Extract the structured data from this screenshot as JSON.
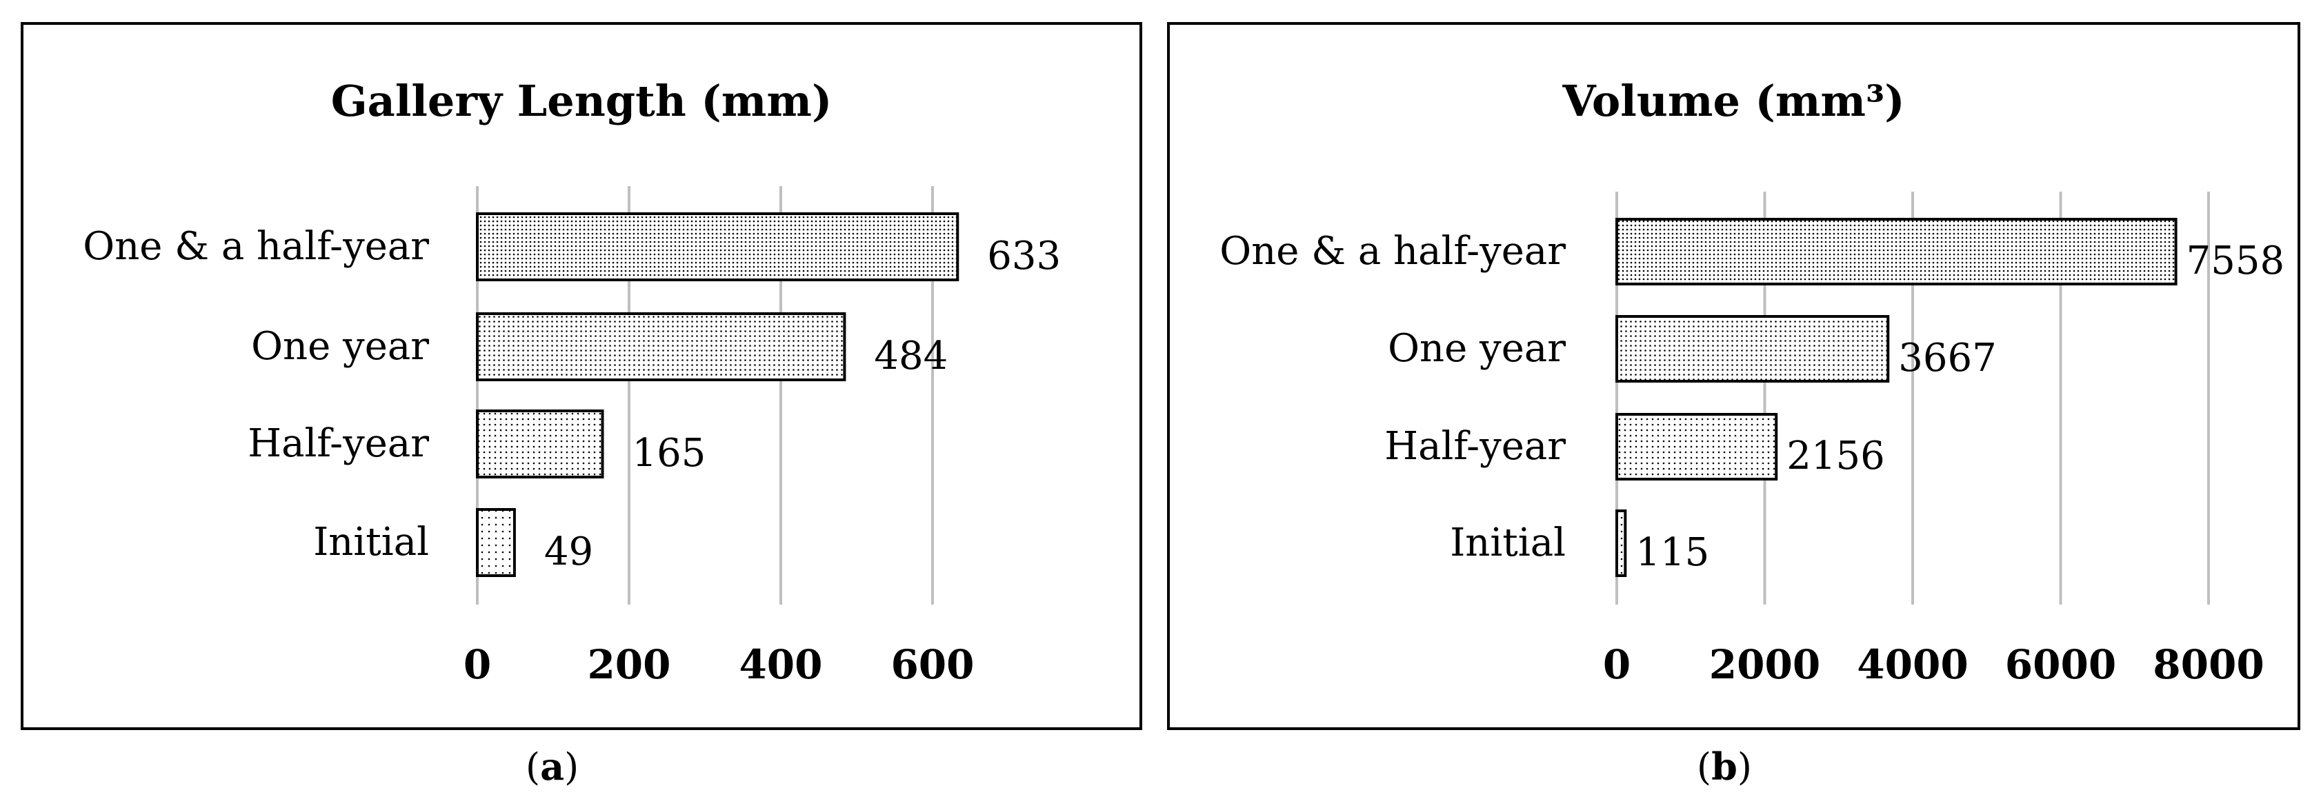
{
  "chart_data": [
    {
      "type": "bar",
      "orientation": "horizontal",
      "title": "Gallery Length (mm)",
      "categories": [
        "One & a half-year",
        "One year",
        "Half-year",
        "Initial"
      ],
      "values": [
        633,
        484,
        165,
        49
      ],
      "xlim": [
        0,
        650
      ],
      "xticks": [
        0,
        200,
        400,
        600
      ],
      "xtick_labels": [
        "0",
        "200",
        "400",
        "600"
      ],
      "grid": "vertical",
      "legend": "none",
      "data_labels": true,
      "fill": "stippled",
      "caption": "(a)"
    },
    {
      "type": "bar",
      "orientation": "horizontal",
      "title": "Volume (mm³)",
      "categories": [
        "One & a half-year",
        "One year",
        "Half-year",
        "Initial"
      ],
      "values": [
        7558,
        3667,
        2156,
        115
      ],
      "xlim": [
        0,
        8000
      ],
      "xticks": [
        0,
        2000,
        4000,
        6000,
        8000
      ],
      "xtick_labels": [
        "0",
        "2000",
        "4000",
        "6000",
        "8000"
      ],
      "grid": "vertical",
      "legend": "none",
      "data_labels": true,
      "fill": "stippled",
      "caption": "(b)"
    }
  ],
  "colors": {
    "grid": "#bfbfbf",
    "bar_edge": "#000000",
    "dots": "#000000",
    "background": "#ffffff"
  }
}
